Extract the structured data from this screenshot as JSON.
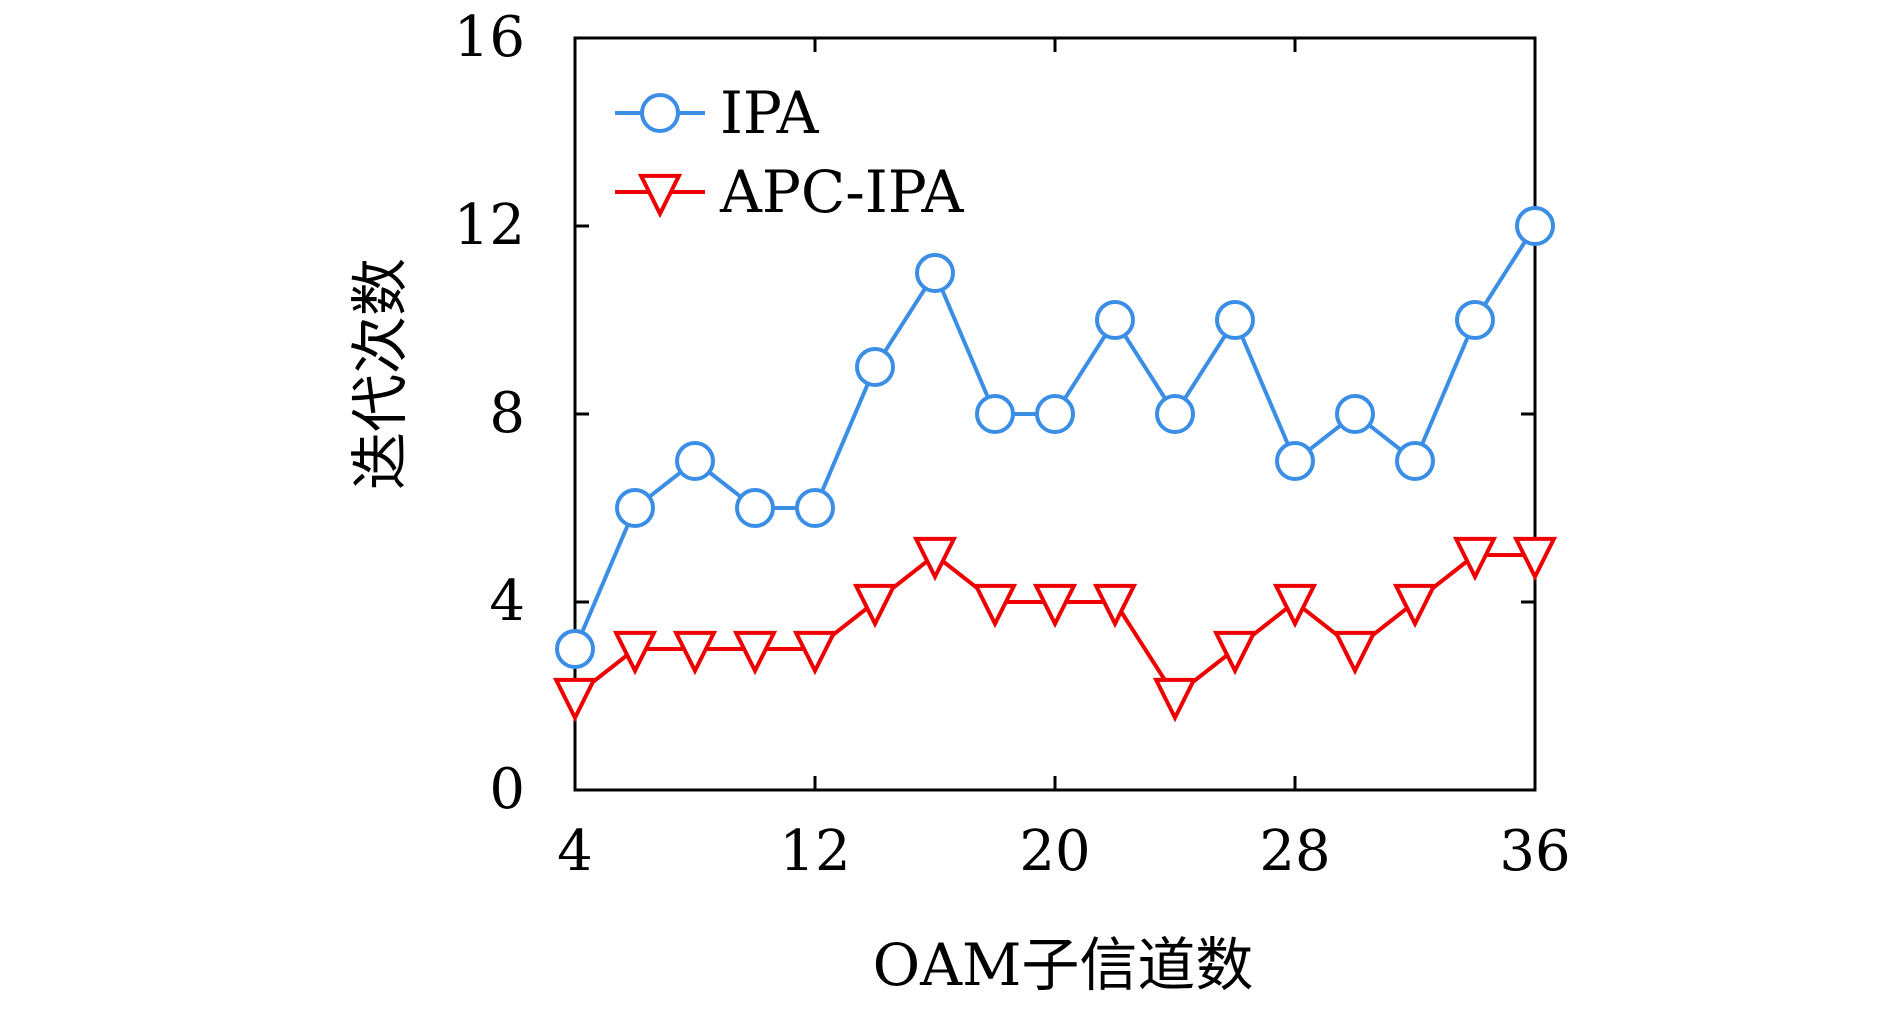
{
  "chart_data": {
    "type": "line",
    "xlabel": "OAM子信道数",
    "ylabel": "迭代次数",
    "xlim": [
      4,
      36
    ],
    "ylim": [
      0,
      16
    ],
    "x_ticks": [
      4,
      12,
      20,
      28,
      36
    ],
    "y_ticks": [
      0,
      4,
      8,
      12,
      16
    ],
    "grid": false,
    "legend_position": "top-left",
    "x": [
      4,
      6,
      8,
      10,
      12,
      14,
      16,
      18,
      20,
      22,
      24,
      26,
      28,
      30,
      32,
      34,
      36
    ],
    "series": [
      {
        "name": "IPA",
        "color": "#3b8ee6",
        "marker": "circle",
        "values": [
          3,
          6,
          7,
          6,
          6,
          9,
          11,
          8,
          8,
          10,
          8,
          10,
          7,
          8,
          7,
          10,
          12
        ]
      },
      {
        "name": "APC-IPA",
        "color": "#ee0000",
        "marker": "triangle-down",
        "values": [
          2,
          3,
          3,
          3,
          3,
          4,
          5,
          4,
          4,
          4,
          2,
          3,
          4,
          3,
          4,
          5,
          5
        ]
      }
    ]
  }
}
